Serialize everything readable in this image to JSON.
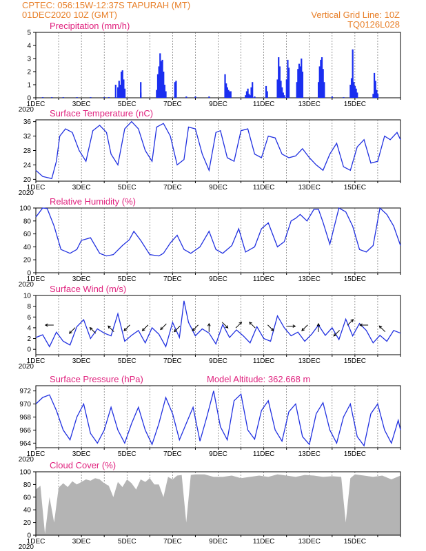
{
  "header": {
    "line1": "CPTEC:   056:15W-12:37S   TAPURAH (MT)",
    "line2": "01DEC2020 10Z (GMT)",
    "grid_note": "Vertical Grid Line: 10Z",
    "code": "TQ0126L028"
  },
  "x_labels": [
    "1DEC",
    "3DEC",
    "5DEC",
    "7DEC",
    "9DEC",
    "11DEC",
    "13DEC",
    "15DEC"
  ],
  "x_sublabel": "2020",
  "colors": {
    "header": "#e8802a",
    "title": "#e0227e",
    "line": "#2030e0",
    "bar": "#1a2ef0",
    "cloud": "#b4b4b4",
    "grid": "#555555"
  },
  "chart_data": [
    {
      "type": "bar",
      "title": "Precipitation (mm/h)",
      "ylim": [
        0,
        5
      ],
      "yticks": [
        0,
        1,
        2,
        3,
        4,
        5
      ],
      "x_unit": "days since 1DEC 10Z",
      "x": [
        0.3,
        0.7,
        1.2,
        1.8,
        2.4,
        3.0,
        3.2,
        3.5,
        3.6,
        3.65,
        3.7,
        3.75,
        3.8,
        3.85,
        3.9,
        4.6,
        4.6,
        5.3,
        5.35,
        5.4,
        5.45,
        5.5,
        5.55,
        5.6,
        5.65,
        5.7,
        6.1,
        6.15,
        6.6,
        7.0,
        7.6,
        8.3,
        8.35,
        8.4,
        8.45,
        8.5,
        8.55,
        9.2,
        9.25,
        9.3,
        9.35,
        9.4,
        9.45,
        9.5,
        9.6,
        10.1,
        10.15,
        10.6,
        10.65,
        10.7,
        10.75,
        10.8,
        10.85,
        10.9,
        11.0,
        11.05,
        11.1,
        11.45,
        11.5,
        11.55,
        11.6,
        11.65,
        11.7,
        12.4,
        12.45,
        12.5,
        12.55,
        12.6,
        12.65,
        13.0,
        13.5,
        13.8,
        13.85,
        13.9,
        13.95,
        14.0,
        14.05,
        14.1,
        14.8,
        14.85,
        14.9,
        14.95,
        15.0
      ],
      "values": [
        0.05,
        0.05,
        0.05,
        0.05,
        0.05,
        0.05,
        0.05,
        1.0,
        0.8,
        1.3,
        1.0,
        2.0,
        2.1,
        1.4,
        0.7,
        0.4,
        1.2,
        0.6,
        1.8,
        2.4,
        3.4,
        2.8,
        2.9,
        2.0,
        1.0,
        0.5,
        1.2,
        1.3,
        0.1,
        0.1,
        0.1,
        1.8,
        1.1,
        0.8,
        0.6,
        0.5,
        0.5,
        0.2,
        0.5,
        0.7,
        0.3,
        0.2,
        0.8,
        1.2,
        0.1,
        0.9,
        0.5,
        1.4,
        3.1,
        2.4,
        1.3,
        0.8,
        0.4,
        0.2,
        1.4,
        2.9,
        2.3,
        1.2,
        2.2,
        2.6,
        2.4,
        3.0,
        2.0,
        1.2,
        2.4,
        2.9,
        3.1,
        2.2,
        1.2,
        0.1,
        0.05,
        1.0,
        1.5,
        3.7,
        1.2,
        0.9,
        0.7,
        0.4,
        0.3,
        1.9,
        1.3,
        0.6,
        0.3
      ]
    },
    {
      "type": "line",
      "title": "Surface Temperature (nC)",
      "ylim": [
        19.5,
        36.5
      ],
      "yticks": [
        20,
        24,
        28,
        32,
        36
      ],
      "x": [
        0,
        0.3,
        0.5,
        0.7,
        0.9,
        1.05,
        1.3,
        1.6,
        1.9,
        2.2,
        2.5,
        2.8,
        3.1,
        3.3,
        3.6,
        3.9,
        4.2,
        4.5,
        4.8,
        5.1,
        5.3,
        5.6,
        5.9,
        6.2,
        6.5,
        6.7,
        7.0,
        7.3,
        7.6,
        7.9,
        8.1,
        8.4,
        8.7,
        9.0,
        9.3,
        9.6,
        9.9,
        10.2,
        10.5,
        10.8,
        11.1,
        11.4,
        11.7,
        12.0,
        12.3,
        12.6,
        12.9,
        13.2,
        13.5,
        13.8,
        14.1,
        14.4,
        14.7,
        15.0,
        15.3,
        15.55,
        15.85,
        16.0
      ],
      "y": [
        22.5,
        20.8,
        20.5,
        20.2,
        25,
        32,
        34,
        33,
        28,
        25,
        33.5,
        35,
        33,
        27,
        24,
        34,
        36,
        34,
        28,
        25,
        34.5,
        35.5,
        32,
        24,
        25.5,
        34.5,
        34,
        27,
        22.5,
        33,
        33.5,
        26,
        25,
        33.5,
        34,
        27,
        26,
        32,
        31.5,
        27,
        26,
        26.5,
        28.5,
        26,
        24,
        22.5,
        27,
        30,
        23.5,
        22.5,
        29,
        31,
        24.5,
        25,
        32,
        31,
        33,
        31
      ]
    },
    {
      "type": "line",
      "title": "Relative Humidity (%)",
      "ylim": [
        0,
        100
      ],
      "yticks": [
        0,
        20,
        40,
        60,
        80,
        100
      ],
      "x": [
        0,
        0.3,
        0.5,
        0.8,
        1.1,
        1.5,
        1.8,
        2.0,
        2.4,
        2.8,
        3.1,
        3.4,
        3.8,
        4.1,
        4.3,
        4.6,
        5.0,
        5.4,
        5.6,
        5.9,
        6.2,
        6.5,
        6.8,
        7.2,
        7.6,
        7.9,
        8.2,
        8.6,
        8.9,
        9.2,
        9.6,
        9.9,
        10.2,
        10.6,
        10.9,
        11.2,
        11.4,
        11.6,
        11.9,
        12.2,
        12.4,
        12.6,
        12.9,
        13.3,
        13.6,
        13.9,
        14.2,
        14.5,
        14.8,
        15.1,
        15.4,
        15.7,
        16.0
      ],
      "y": [
        86,
        100,
        99,
        72,
        36,
        30,
        36,
        50,
        54,
        30,
        26,
        28,
        42,
        51,
        64,
        50,
        28,
        26,
        30,
        46,
        58,
        36,
        30,
        40,
        64,
        36,
        30,
        42,
        68,
        32,
        40,
        68,
        77,
        40,
        48,
        80,
        84,
        90,
        80,
        98,
        98,
        78,
        44,
        100,
        94,
        72,
        36,
        32,
        42,
        100,
        90,
        72,
        42
      ]
    },
    {
      "type": "line",
      "title": "Surface Wind (m/s)",
      "ylim": [
        -1,
        10
      ],
      "yticks": [
        0,
        2,
        4,
        6,
        8,
        10
      ],
      "x": [
        0,
        0.3,
        0.6,
        0.9,
        1.2,
        1.5,
        1.8,
        2.1,
        2.4,
        2.7,
        3.0,
        3.3,
        3.6,
        3.9,
        4.2,
        4.5,
        4.8,
        5.1,
        5.4,
        5.7,
        6.0,
        6.3,
        6.5,
        6.7,
        7.0,
        7.3,
        7.6,
        7.9,
        8.2,
        8.5,
        8.8,
        9.1,
        9.4,
        9.7,
        10.0,
        10.3,
        10.6,
        10.9,
        11.2,
        11.5,
        11.8,
        12.1,
        12.4,
        12.7,
        13.0,
        13.3,
        13.6,
        13.9,
        14.2,
        14.5,
        14.8,
        15.1,
        15.4,
        15.7,
        16.0
      ],
      "y": [
        2.2,
        2.7,
        0.5,
        3.2,
        1.5,
        0.8,
        4.2,
        5.5,
        2.0,
        3.8,
        3.0,
        2.5,
        6.6,
        1.5,
        2.6,
        3.5,
        1.2,
        4.0,
        2.8,
        0.5,
        5.0,
        2.2,
        9.0,
        5.0,
        2.5,
        3.8,
        3.0,
        1.0,
        4.6,
        2.2,
        3.6,
        2.5,
        1.2,
        4.2,
        2.0,
        1.5,
        6.2,
        4.0,
        2.5,
        3.2,
        1.5,
        2.8,
        4.5,
        2.6,
        4.0,
        1.8,
        5.6,
        2.5,
        4.8,
        3.5,
        1.2,
        2.6,
        1.5,
        3.5,
        3.0
      ],
      "arrows": [
        {
          "x": 0.6,
          "ws": 4.5,
          "dir": "W"
        },
        {
          "x": 1.6,
          "ws": 3.5,
          "dir": "SW"
        },
        {
          "x": 2.5,
          "ws": 3.5,
          "dir": "NW"
        },
        {
          "x": 3.3,
          "ws": 3.8,
          "dir": "NW"
        },
        {
          "x": 4.0,
          "ws": 4.0,
          "dir": "SW"
        },
        {
          "x": 4.8,
          "ws": 4.0,
          "dir": "SW"
        },
        {
          "x": 5.6,
          "ws": 4.2,
          "dir": "SW"
        },
        {
          "x": 6.2,
          "ws": 3.8,
          "dir": "SW"
        },
        {
          "x": 7.0,
          "ws": 4.0,
          "dir": "SW"
        },
        {
          "x": 7.6,
          "ws": 4.0,
          "dir": "N"
        },
        {
          "x": 8.3,
          "ws": 4.5,
          "dir": "SE"
        },
        {
          "x": 8.9,
          "ws": 4.5,
          "dir": "NE"
        },
        {
          "x": 9.5,
          "ws": 4.5,
          "dir": "NW"
        },
        {
          "x": 10.3,
          "ws": 4.0,
          "dir": "SE"
        },
        {
          "x": 11.2,
          "ws": 4.3,
          "dir": "E"
        },
        {
          "x": 11.8,
          "ws": 4.0,
          "dir": "SW"
        },
        {
          "x": 12.4,
          "ws": 4.0,
          "dir": "N"
        },
        {
          "x": 13.2,
          "ws": 3.0,
          "dir": "SW"
        },
        {
          "x": 13.8,
          "ws": 5.0,
          "dir": "NE"
        },
        {
          "x": 14.4,
          "ws": 4.5,
          "dir": "W"
        },
        {
          "x": 15.2,
          "ws": 3.8,
          "dir": "NW"
        }
      ]
    },
    {
      "type": "line",
      "title": "Surface Pressure (hPa)",
      "annotation": "Model Altitude: 362.668  m",
      "ylim": [
        963.3,
        972.8
      ],
      "yticks": [
        964,
        966,
        968,
        970,
        972
      ],
      "x": [
        0,
        0.3,
        0.6,
        0.9,
        1.2,
        1.5,
        1.8,
        2.1,
        2.4,
        2.7,
        3.0,
        3.3,
        3.6,
        3.9,
        4.2,
        4.5,
        4.8,
        5.1,
        5.4,
        5.7,
        6.0,
        6.3,
        6.6,
        6.9,
        7.2,
        7.5,
        7.8,
        8.1,
        8.4,
        8.7,
        9.0,
        9.3,
        9.6,
        9.9,
        10.2,
        10.5,
        10.8,
        11.1,
        11.4,
        11.7,
        12.0,
        12.3,
        12.6,
        12.9,
        13.2,
        13.5,
        13.8,
        14.1,
        14.4,
        14.7,
        15.0,
        15.3,
        15.6,
        15.9,
        16.0
      ],
      "y": [
        970,
        971,
        971.4,
        969,
        966,
        964.5,
        968,
        970,
        965.5,
        964,
        966,
        969.5,
        966,
        964,
        967,
        969.5,
        966,
        963.8,
        967,
        971,
        968.5,
        964.5,
        967,
        969.5,
        964.3,
        968,
        972,
        966.5,
        964.5,
        970.5,
        971.5,
        966,
        964.6,
        969,
        970.5,
        966,
        964.3,
        968.8,
        970,
        965,
        963.8,
        968.5,
        970.2,
        966,
        964,
        968,
        970,
        965,
        963.6,
        968.5,
        970,
        966,
        964,
        967.5,
        966
      ]
    },
    {
      "type": "area",
      "title": "Cloud Cover (%)",
      "ylim": [
        0,
        100
      ],
      "yticks": [
        0,
        20,
        40,
        60,
        80,
        100
      ],
      "x": [
        0,
        0.2,
        0.4,
        0.6,
        0.8,
        1.0,
        1.2,
        1.4,
        1.6,
        1.8,
        2.0,
        2.2,
        2.4,
        2.6,
        2.8,
        3.0,
        3.2,
        3.4,
        3.6,
        3.8,
        4.0,
        4.2,
        4.4,
        4.6,
        4.8,
        5.0,
        5.2,
        5.4,
        5.6,
        5.8,
        6.0,
        6.2,
        6.4,
        6.6,
        6.8,
        7.0,
        7.4,
        7.8,
        8.2,
        8.6,
        9.0,
        9.4,
        9.8,
        10.2,
        10.6,
        11.0,
        11.4,
        11.8,
        12.2,
        12.6,
        13.0,
        13.4,
        13.6,
        13.8,
        14.0,
        14.4,
        14.8,
        15.2,
        15.6,
        16.0
      ],
      "y": [
        72,
        78,
        2,
        60,
        20,
        75,
        82,
        76,
        85,
        80,
        84,
        88,
        86,
        90,
        88,
        82,
        78,
        60,
        84,
        76,
        88,
        82,
        72,
        88,
        84,
        90,
        80,
        80,
        60,
        92,
        88,
        94,
        95,
        20,
        95,
        96,
        96,
        92,
        92,
        94,
        90,
        92,
        94,
        92,
        96,
        94,
        92,
        95,
        94,
        92,
        93,
        92,
        20,
        90,
        96,
        94,
        92,
        94,
        88,
        94
      ]
    }
  ]
}
